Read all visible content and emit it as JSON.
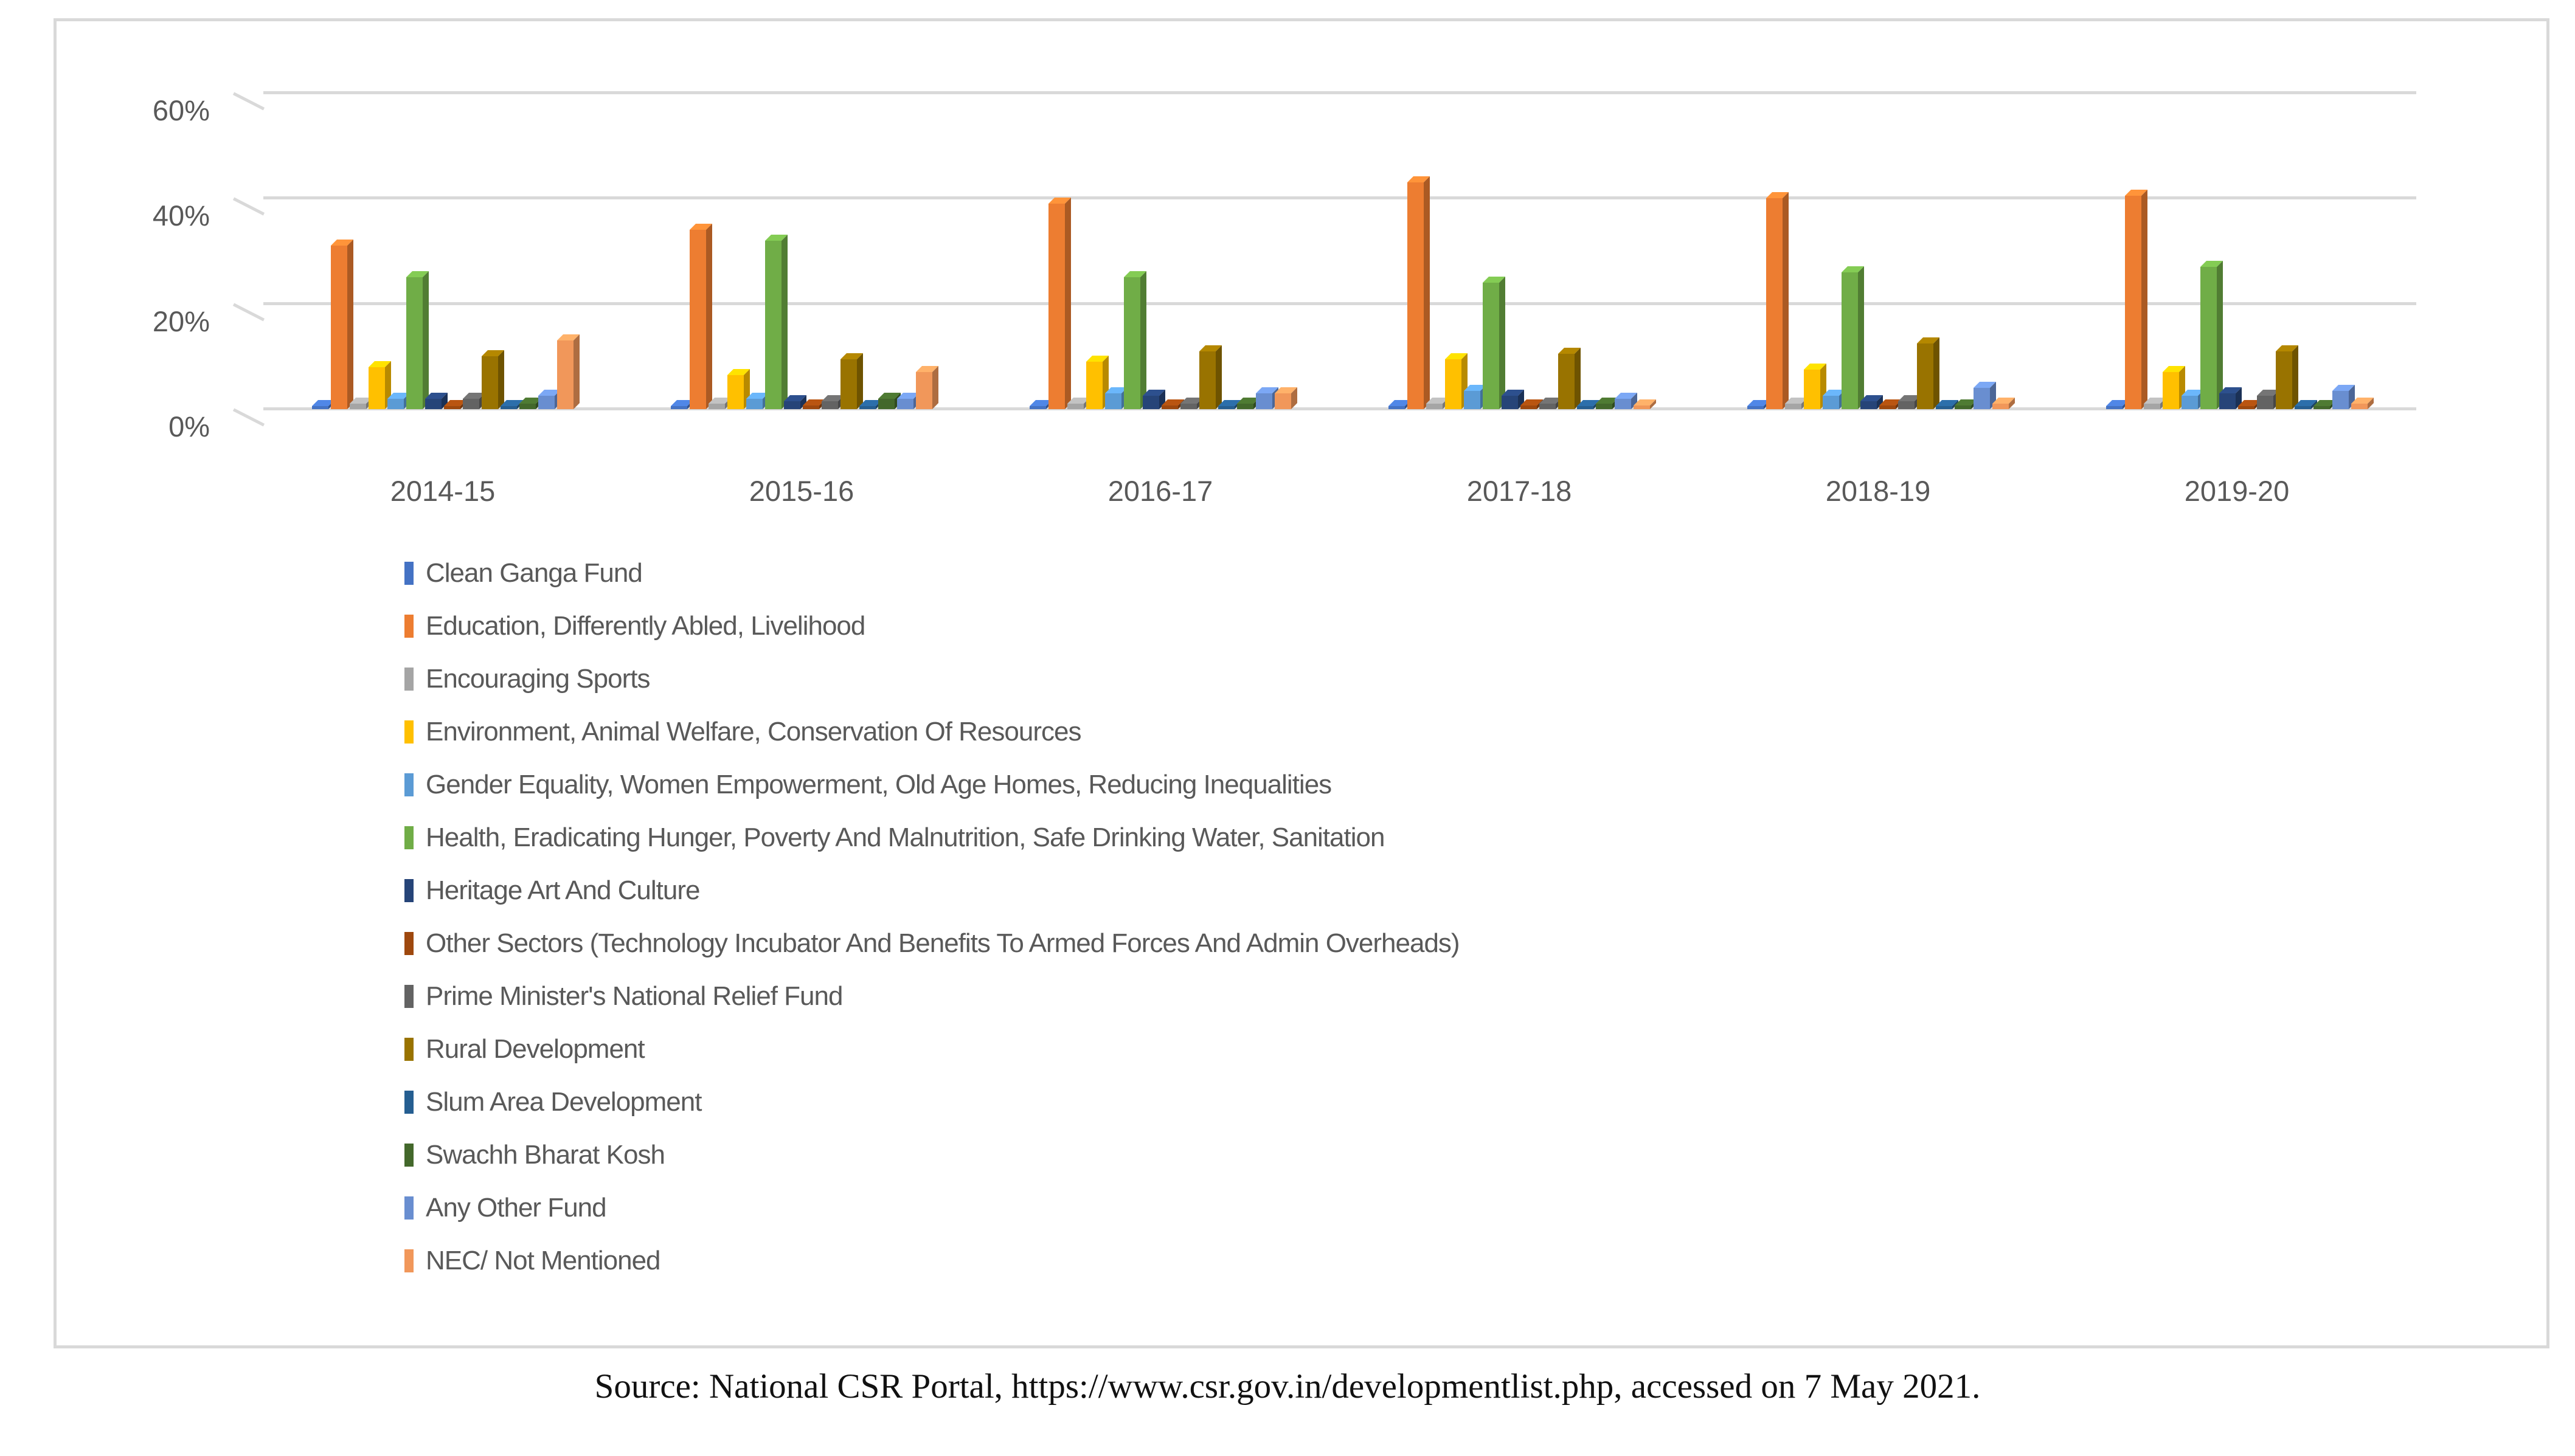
{
  "chart_data": {
    "type": "bar",
    "title": "",
    "categories": [
      "2014-15",
      "2015-16",
      "2016-17",
      "2017-18",
      "2018-19",
      "2019-20"
    ],
    "y_axis": {
      "unit": "%",
      "range": [
        0,
        60
      ],
      "ticks": [
        {
          "label": "60%",
          "value": 60
        },
        {
          "label": "40%",
          "value": 40
        },
        {
          "label": "20%",
          "value": 20
        },
        {
          "label": "0%",
          "value": 0
        }
      ]
    },
    "grid": true,
    "legend_position": "bottom-left",
    "effect": "3d-column",
    "series": [
      {
        "name": "Clean Ganga Fund",
        "color": "#4472C4",
        "values": [
          0.5,
          0.5,
          0.5,
          0.5,
          0.5,
          0.5
        ]
      },
      {
        "name": "Education, Differently Abled, Livelihood",
        "color": "#ED7D31",
        "values": [
          31,
          34,
          39,
          43,
          40,
          40.5
        ]
      },
      {
        "name": "Encouraging Sports",
        "color": "#A5A5A5",
        "values": [
          1,
          1,
          1,
          1,
          1,
          1
        ]
      },
      {
        "name": "Environment, Animal Welfare, Conservation Of Resources",
        "color": "#FFC000",
        "values": [
          8,
          6.5,
          9,
          9.5,
          7.5,
          7
        ]
      },
      {
        "name": "Gender Equality, Women Empowerment, Old Age Homes, Reducing Inequalities",
        "color": "#5B9BD5",
        "values": [
          2,
          2,
          3,
          3.5,
          2.5,
          2.5
        ]
      },
      {
        "name": "Health, Eradicating Hunger, Poverty And Malnutrition, Safe Drinking Water, Sanitation",
        "color": "#70AD47",
        "values": [
          25,
          32,
          25,
          24,
          26,
          27
        ]
      },
      {
        "name": "Heritage Art And Culture",
        "color": "#264478",
        "values": [
          2,
          1.5,
          2.5,
          2.5,
          1.5,
          3
        ]
      },
      {
        "name": "Other Sectors (Technology Incubator And Benefits To Armed Forces And Admin Overheads)",
        "color": "#9E480E",
        "values": [
          0.5,
          0.7,
          0.7,
          0.7,
          0.7,
          0.5
        ]
      },
      {
        "name": "Prime Minister's National Relief Fund",
        "color": "#636363",
        "values": [
          2,
          1.5,
          1,
          1,
          1.5,
          2.5
        ]
      },
      {
        "name": "Rural Development",
        "color": "#997300",
        "values": [
          10,
          9.5,
          11,
          10.5,
          12.5,
          11
        ]
      },
      {
        "name": "Slum Area Development",
        "color": "#255E91",
        "values": [
          0.5,
          0.5,
          0.5,
          0.5,
          0.5,
          0.5
        ]
      },
      {
        "name": "Swachh Bharat Kosh",
        "color": "#43682B",
        "values": [
          1,
          2,
          1,
          1,
          0.7,
          0.5
        ]
      },
      {
        "name": "Any Other Fund",
        "color": "#698ED0",
        "values": [
          2.5,
          2,
          3,
          2,
          4,
          3.5
        ]
      },
      {
        "name": "NEC/ Not Mentioned",
        "color": "#F1975A",
        "values": [
          13,
          7,
          3,
          0.7,
          1,
          1
        ]
      }
    ]
  },
  "source_note": "Source: National CSR Portal, https://www.csr.gov.in/developmentlist.php, accessed on 7 May 2021."
}
